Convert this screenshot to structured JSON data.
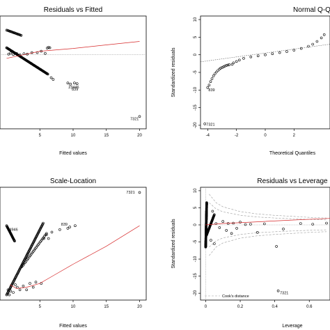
{
  "chart_data": [
    {
      "id": "rvf",
      "type": "scatter",
      "title": "Residuals vs Fitted",
      "xlabel": "Fitted values",
      "ylabel": "",
      "xlim": [
        -1,
        21
      ],
      "ylim": [
        -21,
        11
      ],
      "xticks": [
        5,
        10,
        15,
        20
      ],
      "yticks": [],
      "ref_hline": 0,
      "smooth": [
        [
          0,
          -1
        ],
        [
          5,
          1
        ],
        [
          10,
          1.8
        ],
        [
          15,
          2.8
        ],
        [
          20,
          3.8
        ]
      ],
      "clusters": [
        {
          "x0": 0,
          "y0": 2,
          "x1": 6.2,
          "y1": -5.5,
          "n": 90
        },
        {
          "x0": 0,
          "y0": 7,
          "x1": 2.2,
          "y1": 5.5,
          "n": 20
        }
      ],
      "points": [
        [
          0.3,
          0.2
        ],
        [
          0.6,
          0.5
        ],
        [
          1.0,
          0.1
        ],
        [
          1.5,
          0.4
        ],
        [
          2.0,
          0.0
        ],
        [
          2.6,
          0.3
        ],
        [
          3.1,
          0.2
        ],
        [
          3.8,
          0.6
        ],
        [
          4.6,
          0.6
        ],
        [
          5.2,
          1.0
        ],
        [
          5.8,
          0.4
        ],
        [
          6.1,
          1.9
        ],
        [
          6.3,
          2.1
        ],
        [
          6.5,
          2.0
        ],
        [
          6.7,
          -6.5
        ],
        [
          7.0,
          -7.0
        ],
        [
          9.2,
          -8.0
        ],
        [
          9.6,
          -8.3
        ],
        [
          10.2,
          -8.0
        ],
        [
          10.6,
          -8.2
        ],
        [
          20,
          -17.5
        ]
      ],
      "annotations": [
        {
          "label": "23446",
          "x": 9.3,
          "y": -9.5
        },
        {
          "label": "839",
          "x": 9.8,
          "y": -10.1
        },
        {
          "label": "7321",
          "x": 18.6,
          "y": -18.5
        }
      ]
    },
    {
      "id": "qq",
      "type": "scatter",
      "title": "Normal Q-Q",
      "xlabel": "Theoretical Quantiles",
      "ylabel": "Standardized residuals",
      "xlim": [
        -4.5,
        4.5
      ],
      "ylim": [
        -21,
        11
      ],
      "xticks": [
        -4,
        -2,
        0,
        2
      ],
      "yticks": [
        -20,
        -15,
        -10,
        -5,
        0,
        5,
        10
      ],
      "points": [
        [
          -4.2,
          -19.6
        ],
        [
          -4.0,
          -9.3
        ],
        [
          -3.9,
          -8.6
        ],
        [
          -3.8,
          -7.6
        ],
        [
          -3.7,
          -6.8
        ],
        [
          -3.6,
          -6.0
        ],
        [
          -3.5,
          -5.4
        ],
        [
          -3.4,
          -4.9
        ],
        [
          -3.3,
          -4.5
        ],
        [
          -3.2,
          -4.1
        ],
        [
          -3.1,
          -3.8
        ],
        [
          -3.0,
          -3.6
        ],
        [
          -2.9,
          -3.4
        ],
        [
          -2.8,
          -3.2
        ],
        [
          -2.7,
          -3.0
        ],
        [
          -2.6,
          -2.9
        ],
        [
          -2.5,
          -2.8
        ],
        [
          -2.3,
          -2.7
        ],
        [
          -2.2,
          -2.3
        ],
        [
          -2.0,
          -1.9
        ],
        [
          -1.8,
          -1.5
        ],
        [
          -1.5,
          -1.0
        ],
        [
          -1.0,
          -0.6
        ],
        [
          -0.5,
          -0.3
        ],
        [
          0,
          0
        ],
        [
          0.5,
          0.3
        ],
        [
          1.0,
          0.6
        ],
        [
          1.5,
          0.9
        ],
        [
          2.0,
          1.3
        ],
        [
          2.5,
          1.8
        ],
        [
          3.0,
          2.4
        ],
        [
          3.3,
          3.0
        ],
        [
          3.6,
          3.8
        ],
        [
          3.9,
          4.8
        ],
        [
          4.1,
          5.7
        ]
      ],
      "qq_line": [
        [
          -4.5,
          -2.0
        ],
        [
          4.5,
          3.0
        ]
      ],
      "annotations": [
        {
          "label": "839",
          "x": -3.95,
          "y": -10.3
        },
        {
          "label": "7321",
          "x": -4.1,
          "y": -20.1
        }
      ]
    },
    {
      "id": "sl",
      "type": "scatter",
      "title": "Scale-Location",
      "xlabel": "Fitted values",
      "ylabel": "",
      "xlim": [
        -1,
        21
      ],
      "ylim": [
        -0.1,
        4.3
      ],
      "xticks": [
        5,
        10,
        15,
        20
      ],
      "yticks": [],
      "smooth": [
        [
          0.5,
          0.5
        ],
        [
          1.5,
          0.35
        ],
        [
          3,
          0.4
        ],
        [
          5,
          0.55
        ],
        [
          7,
          0.85
        ],
        [
          10,
          1.3
        ],
        [
          15,
          2.0
        ],
        [
          20,
          2.8
        ]
      ],
      "clusters": [
        {
          "x0": 0,
          "y0": 0.1,
          "x1": 5.5,
          "y1": 2.9,
          "n": 90
        },
        {
          "x0": 0,
          "y0": 2.8,
          "x1": 1.2,
          "y1": 2.2,
          "n": 30
        },
        {
          "x0": 2.3,
          "y0": 1.2,
          "x1": 6,
          "y1": 2.5,
          "n": 25
        }
      ],
      "points": [
        [
          0.2,
          0.3
        ],
        [
          0.4,
          0.1
        ],
        [
          0.6,
          0.25
        ],
        [
          1.0,
          0.2
        ],
        [
          1.3,
          0.5
        ],
        [
          1.6,
          0.4
        ],
        [
          2.0,
          0.3
        ],
        [
          2.5,
          0.45
        ],
        [
          3.0,
          0.3
        ],
        [
          3.5,
          0.55
        ],
        [
          4.0,
          0.4
        ],
        [
          4.4,
          0.6
        ],
        [
          5.2,
          0.55
        ],
        [
          5.6,
          2.3
        ],
        [
          6.0,
          2.45
        ],
        [
          6.3,
          2.3
        ],
        [
          6.8,
          2.55
        ],
        [
          8.0,
          2.65
        ],
        [
          9.2,
          2.7
        ],
        [
          9.5,
          2.75
        ],
        [
          10.3,
          2.8
        ],
        [
          20,
          4.1
        ]
      ],
      "annotations": [
        {
          "label": "4946",
          "x": 0.4,
          "y": 2.6
        },
        {
          "label": "839",
          "x": 8.2,
          "y": 2.8
        },
        {
          "label": "7321",
          "x": 18.0,
          "y": 4.05
        }
      ]
    },
    {
      "id": "rvl",
      "type": "scatter",
      "title": "Residuals vs Leverage",
      "xlabel": "Leverage",
      "ylabel": "Standardized residuals",
      "xlim": [
        -0.03,
        0.72
      ],
      "ylim": [
        -22,
        11
      ],
      "xticks": [
        0.0,
        0.2,
        0.4,
        0.6
      ],
      "yticks": [
        -20,
        -15,
        -10,
        -5,
        0,
        5,
        10
      ],
      "ref_hline": 0,
      "ref_vline": 0,
      "smooth": [
        [
          0,
          0
        ],
        [
          0.1,
          0.4
        ],
        [
          0.3,
          0.9
        ],
        [
          0.5,
          1.4
        ],
        [
          0.72,
          1.9
        ]
      ],
      "clusters": [
        {
          "x0": 0.0,
          "y0": -6.5,
          "x1": 0.006,
          "y1": 6.5,
          "n": 150
        },
        {
          "x0": 0.005,
          "y0": -3,
          "x1": 0.05,
          "y1": 3,
          "n": 40
        }
      ],
      "points": [
        [
          0.06,
          0.4
        ],
        [
          0.08,
          -0.8
        ],
        [
          0.1,
          1.0
        ],
        [
          0.12,
          -1.6
        ],
        [
          0.13,
          0.4
        ],
        [
          0.15,
          -2.5
        ],
        [
          0.16,
          0.5
        ],
        [
          0.18,
          -1.0
        ],
        [
          0.2,
          0.8
        ],
        [
          0.23,
          0.1
        ],
        [
          0.26,
          0.2
        ],
        [
          0.3,
          -2.2
        ],
        [
          0.34,
          0.3
        ],
        [
          0.41,
          -6.3
        ],
        [
          0.42,
          -19.3
        ],
        [
          0.45,
          -1.2
        ],
        [
          0.55,
          0.4
        ],
        [
          0.62,
          0.2
        ],
        [
          0.7,
          0.5
        ],
        [
          0.03,
          -4.5
        ],
        [
          0.05,
          -5.5
        ],
        [
          0.04,
          4.0
        ]
      ],
      "cooks_contours": [
        [
          0.02,
          9
        ],
        [
          0.06,
          6.5
        ],
        [
          0.1,
          5.3
        ],
        [
          0.2,
          3.9
        ],
        [
          0.3,
          3.2
        ],
        [
          0.4,
          2.8
        ],
        [
          0.5,
          2.5
        ],
        [
          0.6,
          2.2
        ],
        [
          0.7,
          2.0
        ]
      ],
      "cooks_inner_scale": 0.72,
      "annotations": [
        {
          "label": "7321",
          "x": 0.43,
          "y": -20.3
        }
      ],
      "legend_label": "Cook's distance",
      "legend_position": "bottom-left"
    }
  ]
}
